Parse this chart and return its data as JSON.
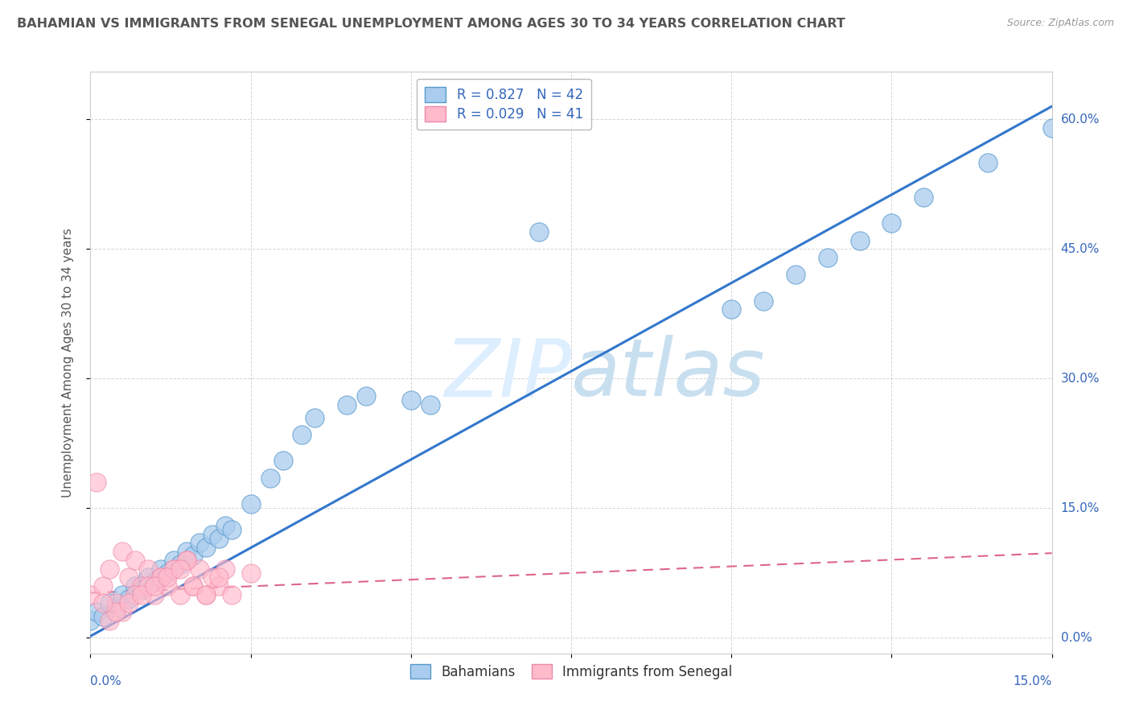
{
  "title": "BAHAMIAN VS IMMIGRANTS FROM SENEGAL UNEMPLOYMENT AMONG AGES 30 TO 34 YEARS CORRELATION CHART",
  "source": "Source: ZipAtlas.com",
  "ylabel": "Unemployment Among Ages 30 to 34 years",
  "xlim": [
    0.0,
    0.15
  ],
  "ylim": [
    -0.018,
    0.655
  ],
  "legend_blue_label": "R = 0.827   N = 42",
  "legend_pink_label": "R = 0.029   N = 41",
  "blue_fill_color": "#aaccee",
  "pink_fill_color": "#ffbbcc",
  "blue_edge_color": "#5599cc",
  "pink_edge_color": "#ee88aa",
  "blue_line_color": "#3377cc",
  "pink_line_color": "#dd6688",
  "title_color": "#555555",
  "axis_label_color": "#3366bb",
  "watermark_color": "#ddeeff",
  "ytick_values": [
    0.0,
    0.15,
    0.3,
    0.45,
    0.6
  ],
  "ytick_labels": [
    "0.0%",
    "15.0%",
    "30.0%",
    "45.0%",
    "60.0%"
  ],
  "xtick_values": [
    0.0,
    0.025,
    0.05,
    0.075,
    0.1,
    0.125,
    0.15
  ],
  "blue_scatter_x": [
    0.0,
    0.001,
    0.002,
    0.003,
    0.004,
    0.005,
    0.006,
    0.007,
    0.008,
    0.009,
    0.01,
    0.011,
    0.012,
    0.013,
    0.014,
    0.015,
    0.016,
    0.017,
    0.018,
    0.019,
    0.02,
    0.021,
    0.022,
    0.025,
    0.028,
    0.03,
    0.033,
    0.035,
    0.04,
    0.043,
    0.05,
    0.053,
    0.07,
    0.1,
    0.105,
    0.11,
    0.115,
    0.12,
    0.125,
    0.13,
    0.14,
    0.15
  ],
  "blue_scatter_y": [
    0.02,
    0.03,
    0.025,
    0.04,
    0.035,
    0.05,
    0.045,
    0.06,
    0.055,
    0.07,
    0.065,
    0.08,
    0.075,
    0.09,
    0.085,
    0.1,
    0.095,
    0.11,
    0.105,
    0.12,
    0.115,
    0.13,
    0.125,
    0.155,
    0.185,
    0.205,
    0.235,
    0.255,
    0.27,
    0.28,
    0.275,
    0.27,
    0.47,
    0.38,
    0.39,
    0.42,
    0.44,
    0.46,
    0.48,
    0.51,
    0.55,
    0.59
  ],
  "pink_scatter_x": [
    0.0,
    0.001,
    0.002,
    0.003,
    0.004,
    0.005,
    0.006,
    0.007,
    0.008,
    0.009,
    0.01,
    0.011,
    0.012,
    0.013,
    0.014,
    0.015,
    0.016,
    0.017,
    0.018,
    0.019,
    0.02,
    0.021,
    0.022,
    0.025,
    0.005,
    0.007,
    0.009,
    0.011,
    0.013,
    0.015,
    0.003,
    0.004,
    0.006,
    0.008,
    0.01,
    0.012,
    0.014,
    0.016,
    0.018,
    0.02,
    0.002
  ],
  "pink_scatter_y": [
    0.05,
    0.18,
    0.06,
    0.08,
    0.04,
    0.1,
    0.07,
    0.09,
    0.06,
    0.08,
    0.05,
    0.07,
    0.06,
    0.08,
    0.05,
    0.09,
    0.06,
    0.08,
    0.05,
    0.07,
    0.06,
    0.08,
    0.05,
    0.075,
    0.03,
    0.05,
    0.06,
    0.07,
    0.08,
    0.09,
    0.02,
    0.03,
    0.04,
    0.05,
    0.06,
    0.07,
    0.08,
    0.06,
    0.05,
    0.07,
    0.04
  ],
  "blue_line_x": [
    0.0,
    0.15
  ],
  "blue_line_y": [
    0.002,
    0.615
  ],
  "pink_line_x": [
    0.0,
    0.15
  ],
  "pink_line_y": [
    0.052,
    0.098
  ]
}
